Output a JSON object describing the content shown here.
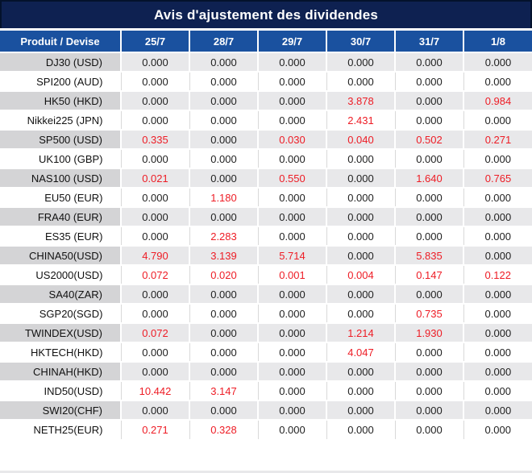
{
  "colors": {
    "title_bg": "#0e2151",
    "title_border": "#04122c",
    "header_bg": "#1a519f",
    "header_text": "#ffffff",
    "stripe_label_bg": "#d4d4d6",
    "stripe_value_bg": "#e8e8ea",
    "grid_line": "#d9d9d9",
    "value_text": "#1f1f1f",
    "highlight_red": "#ee1c25"
  },
  "chart_data": {
    "type": "table",
    "title": "Avis d'ajustement des dividendes",
    "columns": [
      "Produit / Devise",
      "25/7",
      "28/7",
      "29/7",
      "30/7",
      "31/7",
      "1/8"
    ],
    "rows": [
      {
        "product": "DJ30 (USD)",
        "values": [
          "0.000",
          "0.000",
          "0.000",
          "0.000",
          "0.000",
          "0.000"
        ],
        "red_indices": []
      },
      {
        "product": "SPI200 (AUD)",
        "values": [
          "0.000",
          "0.000",
          "0.000",
          "0.000",
          "0.000",
          "0.000"
        ],
        "red_indices": []
      },
      {
        "product": "HK50 (HKD)",
        "values": [
          "0.000",
          "0.000",
          "0.000",
          "3.878",
          "0.000",
          "0.984"
        ],
        "red_indices": [
          3,
          5
        ]
      },
      {
        "product": "Nikkei225 (JPN)",
        "values": [
          "0.000",
          "0.000",
          "0.000",
          "2.431",
          "0.000",
          "0.000"
        ],
        "red_indices": [
          3
        ]
      },
      {
        "product": "SP500 (USD)",
        "values": [
          "0.335",
          "0.000",
          "0.030",
          "0.040",
          "0.502",
          "0.271"
        ],
        "red_indices": [
          0,
          2,
          3,
          4,
          5
        ]
      },
      {
        "product": "UK100 (GBP)",
        "values": [
          "0.000",
          "0.000",
          "0.000",
          "0.000",
          "0.000",
          "0.000"
        ],
        "red_indices": []
      },
      {
        "product": "NAS100 (USD)",
        "values": [
          "0.021",
          "0.000",
          "0.550",
          "0.000",
          "1.640",
          "0.765"
        ],
        "red_indices": [
          0,
          2,
          4,
          5
        ]
      },
      {
        "product": "EU50 (EUR)",
        "values": [
          "0.000",
          "1.180",
          "0.000",
          "0.000",
          "0.000",
          "0.000"
        ],
        "red_indices": [
          1
        ]
      },
      {
        "product": "FRA40 (EUR)",
        "values": [
          "0.000",
          "0.000",
          "0.000",
          "0.000",
          "0.000",
          "0.000"
        ],
        "red_indices": []
      },
      {
        "product": "ES35 (EUR)",
        "values": [
          "0.000",
          "2.283",
          "0.000",
          "0.000",
          "0.000",
          "0.000"
        ],
        "red_indices": [
          1
        ]
      },
      {
        "product": "CHINA50(USD)",
        "values": [
          "4.790",
          "3.139",
          "5.714",
          "0.000",
          "5.835",
          "0.000"
        ],
        "red_indices": [
          0,
          1,
          2,
          4
        ]
      },
      {
        "product": "US2000(USD)",
        "values": [
          "0.072",
          "0.020",
          "0.001",
          "0.004",
          "0.147",
          "0.122"
        ],
        "red_indices": [
          0,
          1,
          2,
          3,
          4,
          5
        ]
      },
      {
        "product": "SA40(ZAR)",
        "values": [
          "0.000",
          "0.000",
          "0.000",
          "0.000",
          "0.000",
          "0.000"
        ],
        "red_indices": []
      },
      {
        "product": "SGP20(SGD)",
        "values": [
          "0.000",
          "0.000",
          "0.000",
          "0.000",
          "0.735",
          "0.000"
        ],
        "red_indices": [
          4
        ]
      },
      {
        "product": "TWINDEX(USD)",
        "values": [
          "0.072",
          "0.000",
          "0.000",
          "1.214",
          "1.930",
          "0.000"
        ],
        "red_indices": [
          0,
          3,
          4
        ]
      },
      {
        "product": "HKTECH(HKD)",
        "values": [
          "0.000",
          "0.000",
          "0.000",
          "4.047",
          "0.000",
          "0.000"
        ],
        "red_indices": [
          3
        ]
      },
      {
        "product": "CHINAH(HKD)",
        "values": [
          "0.000",
          "0.000",
          "0.000",
          "0.000",
          "0.000",
          "0.000"
        ],
        "red_indices": []
      },
      {
        "product": "IND50(USD)",
        "values": [
          "10.442",
          "3.147",
          "0.000",
          "0.000",
          "0.000",
          "0.000"
        ],
        "red_indices": [
          0,
          1
        ]
      },
      {
        "product": "SWI20(CHF)",
        "values": [
          "0.000",
          "0.000",
          "0.000",
          "0.000",
          "0.000",
          "0.000"
        ],
        "red_indices": []
      },
      {
        "product": "NETH25(EUR)",
        "values": [
          "0.271",
          "0.328",
          "0.000",
          "0.000",
          "0.000",
          "0.000"
        ],
        "red_indices": [
          0,
          1
        ]
      }
    ]
  }
}
